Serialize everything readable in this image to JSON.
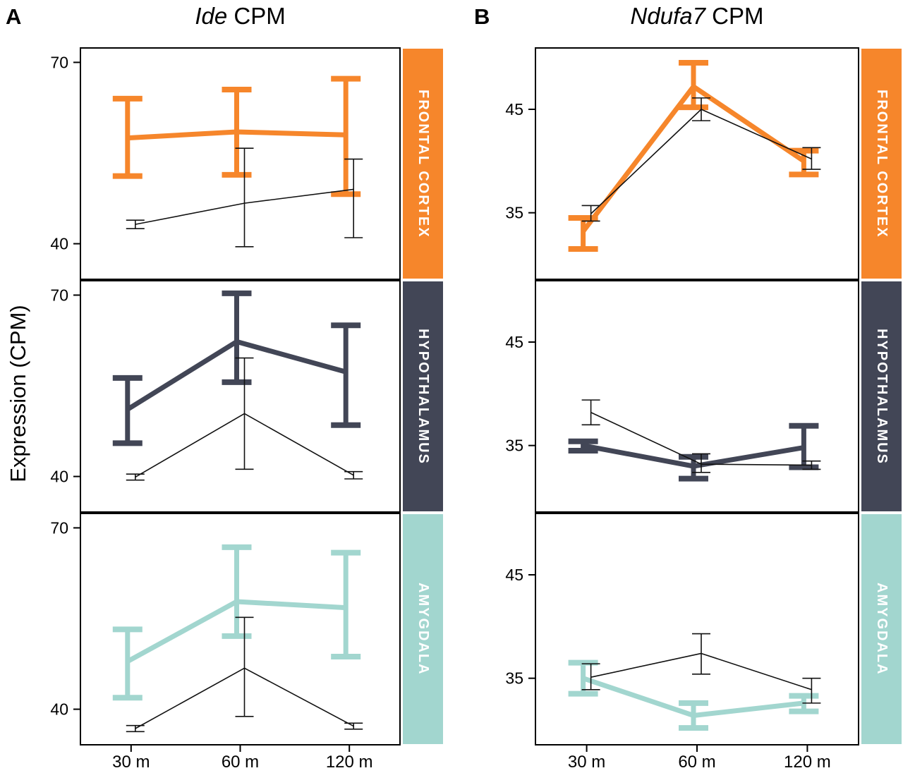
{
  "figure": {
    "y_axis_label": "Expression (CPM)",
    "panels": [
      {
        "label": "A",
        "title_italic": "Ide",
        "title_rest": " CPM"
      },
      {
        "label": "B",
        "title_italic": "Ndufa7",
        "title_rest": " CPM"
      }
    ]
  },
  "colors": {
    "frontal_cortex": "#F6862B",
    "hypothalamus": "#424656",
    "amygdala": "#A2D6CF",
    "thin_line": "#111111",
    "axis": "#000000"
  },
  "chart_data": [
    {
      "type": "line",
      "panel": "A",
      "title": "Ide CPM",
      "x_categories": [
        "30 m",
        "60 m",
        "120 m"
      ],
      "ylim": [
        34,
        72.5
      ],
      "yticks": [
        40,
        70
      ],
      "grid": false,
      "legend": "none",
      "facets": [
        {
          "label": "FRONTAL CORTEX",
          "strip_color": "#F6862B",
          "series": [
            {
              "name": "thick-colored",
              "color": "#F6862B",
              "thick": true,
              "values": [
                57.5,
                58.5,
                58.0
              ],
              "err_low": [
                51.2,
                51.4,
                48.2
              ],
              "err_high": [
                64.0,
                65.5,
                67.3
              ]
            },
            {
              "name": "thin-black",
              "color": "#111111",
              "thick": false,
              "values": [
                43.2,
                46.7,
                49.0
              ],
              "err_low": [
                42.5,
                39.5,
                41.0
              ],
              "err_high": [
                43.9,
                55.8,
                54.0
              ]
            }
          ]
        },
        {
          "label": "HYPOTHALAMUS",
          "strip_color": "#424656",
          "series": [
            {
              "name": "thick-colored",
              "color": "#424656",
              "thick": true,
              "values": [
                51.1,
                62.3,
                57.3
              ],
              "err_low": [
                45.5,
                55.6,
                48.5
              ],
              "err_high": [
                56.3,
                70.3,
                65.0
              ]
            },
            {
              "name": "thin-black",
              "color": "#111111",
              "thick": false,
              "values": [
                39.9,
                50.4,
                40.2
              ],
              "err_low": [
                39.4,
                41.2,
                39.6
              ],
              "err_high": [
                40.4,
                59.6,
                40.8
              ]
            }
          ]
        },
        {
          "label": "AMYGDALA",
          "strip_color": "#A2D6CF",
          "series": [
            {
              "name": "thick-colored",
              "color": "#A2D6CF",
              "thick": true,
              "values": [
                47.9,
                57.8,
                56.8
              ],
              "err_low": [
                41.9,
                52.1,
                48.7
              ],
              "err_high": [
                53.2,
                66.8,
                65.9
              ]
            },
            {
              "name": "thin-black",
              "color": "#111111",
              "thick": false,
              "values": [
                36.8,
                46.8,
                37.2
              ],
              "err_low": [
                36.3,
                38.8,
                36.7
              ],
              "err_high": [
                37.3,
                55.2,
                37.7
              ]
            }
          ]
        }
      ]
    },
    {
      "type": "line",
      "panel": "B",
      "title": "Ndufa7 CPM",
      "x_categories": [
        "30 m",
        "60 m",
        "120 m"
      ],
      "ylim": [
        28.5,
        51
      ],
      "yticks": [
        35,
        45
      ],
      "grid": false,
      "legend": "none",
      "facets": [
        {
          "label": "FRONTAL CORTEX",
          "strip_color": "#F6862B",
          "series": [
            {
              "name": "thick-colored",
              "color": "#F6862B",
              "thick": true,
              "values": [
                33.2,
                47.2,
                40.0
              ],
              "err_low": [
                31.5,
                45.2,
                38.7
              ],
              "err_high": [
                34.5,
                49.5,
                41.0
              ]
            },
            {
              "name": "thin-black",
              "color": "#111111",
              "thick": false,
              "values": [
                34.9,
                45.0,
                40.2
              ],
              "err_low": [
                34.2,
                43.9,
                39.2
              ],
              "err_high": [
                35.7,
                46.1,
                41.3
              ]
            }
          ]
        },
        {
          "label": "HYPOTHALAMUS",
          "strip_color": "#424656",
          "series": [
            {
              "name": "thick-colored",
              "color": "#424656",
              "thick": true,
              "values": [
                35.0,
                33.0,
                34.8
              ],
              "err_low": [
                34.5,
                31.8,
                32.9
              ],
              "err_high": [
                35.4,
                33.9,
                36.9
              ]
            },
            {
              "name": "thin-black",
              "color": "#111111",
              "thick": false,
              "values": [
                38.2,
                33.2,
                33.1
              ],
              "err_low": [
                37.0,
                32.4,
                32.7
              ],
              "err_high": [
                39.4,
                34.2,
                33.5
              ]
            }
          ]
        },
        {
          "label": "AMYGDALA",
          "strip_color": "#A2D6CF",
          "series": [
            {
              "name": "thick-colored",
              "color": "#A2D6CF",
              "thick": true,
              "values": [
                35.0,
                31.4,
                32.6
              ],
              "err_low": [
                33.5,
                30.2,
                31.8
              ],
              "err_high": [
                36.5,
                32.6,
                33.3
              ]
            },
            {
              "name": "thin-black",
              "color": "#111111",
              "thick": false,
              "values": [
                35.1,
                37.4,
                33.9
              ],
              "err_low": [
                33.9,
                35.4,
                32.6
              ],
              "err_high": [
                36.4,
                39.3,
                35.0
              ]
            }
          ]
        }
      ]
    }
  ]
}
